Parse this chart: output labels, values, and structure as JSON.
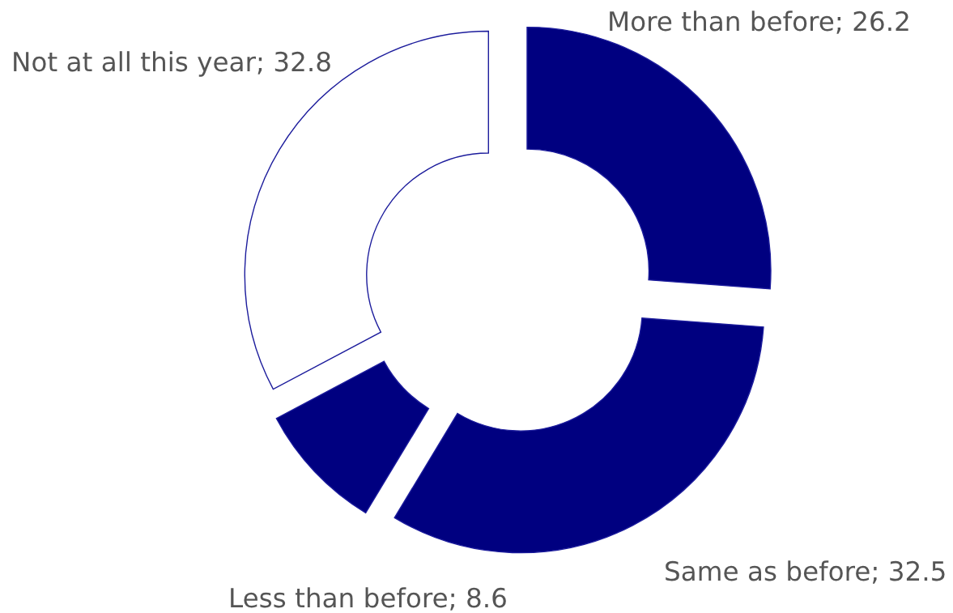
{
  "chart_data": {
    "type": "donut",
    "categories": [
      "More than before",
      "Same as before",
      "Less than before",
      "Not at all this year"
    ],
    "values": [
      26.2,
      32.5,
      8.6,
      32.8
    ],
    "colors": [
      "#000080",
      "#000080",
      "#000080",
      "#ffffff"
    ],
    "value_labels": [
      "; 26.2",
      "; 32.5",
      "; 8.6",
      "; 32.8"
    ]
  }
}
